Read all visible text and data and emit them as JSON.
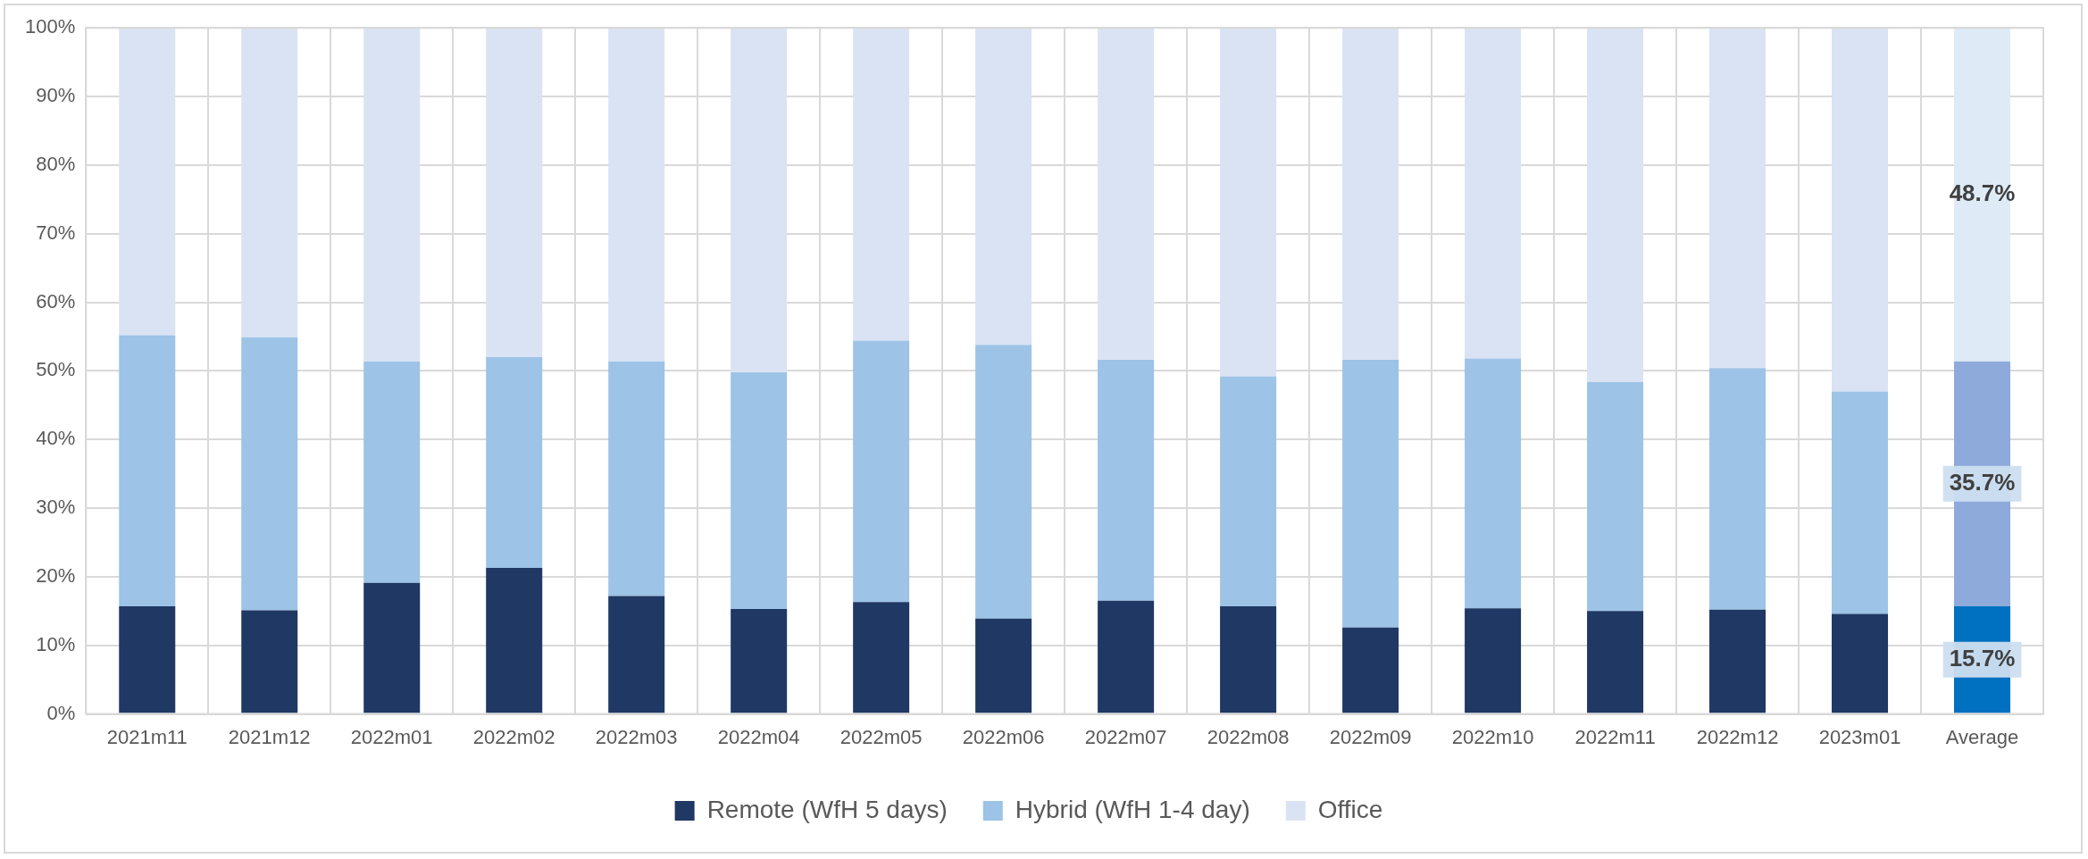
{
  "chart_data": {
    "type": "bar",
    "stacked": true,
    "grid": true,
    "legend": "bottom",
    "categories": [
      "2021m11",
      "2021m12",
      "2022m01",
      "2022m02",
      "2022m03",
      "2022m04",
      "2022m05",
      "2022m06",
      "2022m07",
      "2022m08",
      "2022m09",
      "2022m10",
      "2022m11",
      "2022m12",
      "2023m01",
      "Average"
    ],
    "series": [
      {
        "name": "Remote (WfH 5 days)",
        "color": "#1f3864",
        "colors": [
          "#1f3864",
          "#1f3864",
          "#1f3864",
          "#1f3864",
          "#1f3864",
          "#1f3864",
          "#1f3864",
          "#1f3864",
          "#1f3864",
          "#1f3864",
          "#1f3864",
          "#1f3864",
          "#1f3864",
          "#1f3864",
          "#1f3864",
          "#0070c0"
        ],
        "values": [
          15.7,
          15.1,
          19.1,
          21.3,
          17.2,
          15.3,
          16.3,
          13.9,
          16.5,
          15.7,
          12.6,
          15.4,
          15.0,
          15.2,
          14.6,
          15.7
        ],
        "value_labels": [
          null,
          null,
          null,
          null,
          null,
          null,
          null,
          null,
          null,
          null,
          null,
          null,
          null,
          null,
          null,
          "15.7%"
        ]
      },
      {
        "name": "Hybrid (WfH 1-4 day)",
        "color": "#9dc3e6",
        "colors": [
          "#9dc3e6",
          "#9dc3e6",
          "#9dc3e6",
          "#9dc3e6",
          "#9dc3e6",
          "#9dc3e6",
          "#9dc3e6",
          "#9dc3e6",
          "#9dc3e6",
          "#9dc3e6",
          "#9dc3e6",
          "#9dc3e6",
          "#9dc3e6",
          "#9dc3e6",
          "#9dc3e6",
          "#8eaadb"
        ],
        "values": [
          39.5,
          39.8,
          32.3,
          30.7,
          34.2,
          34.5,
          38.1,
          39.9,
          35.1,
          33.5,
          39.0,
          36.4,
          33.4,
          35.2,
          32.4,
          35.7
        ],
        "value_labels": [
          null,
          null,
          null,
          null,
          null,
          null,
          null,
          null,
          null,
          null,
          null,
          null,
          null,
          null,
          null,
          "35.7%"
        ]
      },
      {
        "name": "Office",
        "color": "#dae3f3",
        "colors": [
          "#dae3f3",
          "#dae3f3",
          "#dae3f3",
          "#dae3f3",
          "#dae3f3",
          "#dae3f3",
          "#dae3f3",
          "#dae3f3",
          "#dae3f3",
          "#dae3f3",
          "#dae3f3",
          "#dae3f3",
          "#dae3f3",
          "#dae3f3",
          "#dae3f3",
          "#deebf7"
        ],
        "values": [
          44.8,
          45.1,
          48.6,
          48.0,
          48.6,
          50.2,
          45.6,
          46.2,
          48.4,
          50.8,
          48.4,
          48.2,
          51.6,
          49.6,
          53.0,
          48.7
        ],
        "value_labels": [
          null,
          null,
          null,
          null,
          null,
          null,
          null,
          null,
          null,
          null,
          null,
          null,
          null,
          null,
          null,
          "48.7%"
        ]
      }
    ],
    "ylim": [
      0,
      100
    ],
    "yticks": [
      {
        "value": 0,
        "label": "0%"
      },
      {
        "value": 10,
        "label": "10%"
      },
      {
        "value": 20,
        "label": "20%"
      },
      {
        "value": 30,
        "label": "30%"
      },
      {
        "value": 40,
        "label": "40%"
      },
      {
        "value": 50,
        "label": "50%"
      },
      {
        "value": 60,
        "label": "60%"
      },
      {
        "value": 70,
        "label": "70%"
      },
      {
        "value": 80,
        "label": "80%"
      },
      {
        "value": 90,
        "label": "90%"
      },
      {
        "value": 100,
        "label": "100%"
      }
    ]
  }
}
